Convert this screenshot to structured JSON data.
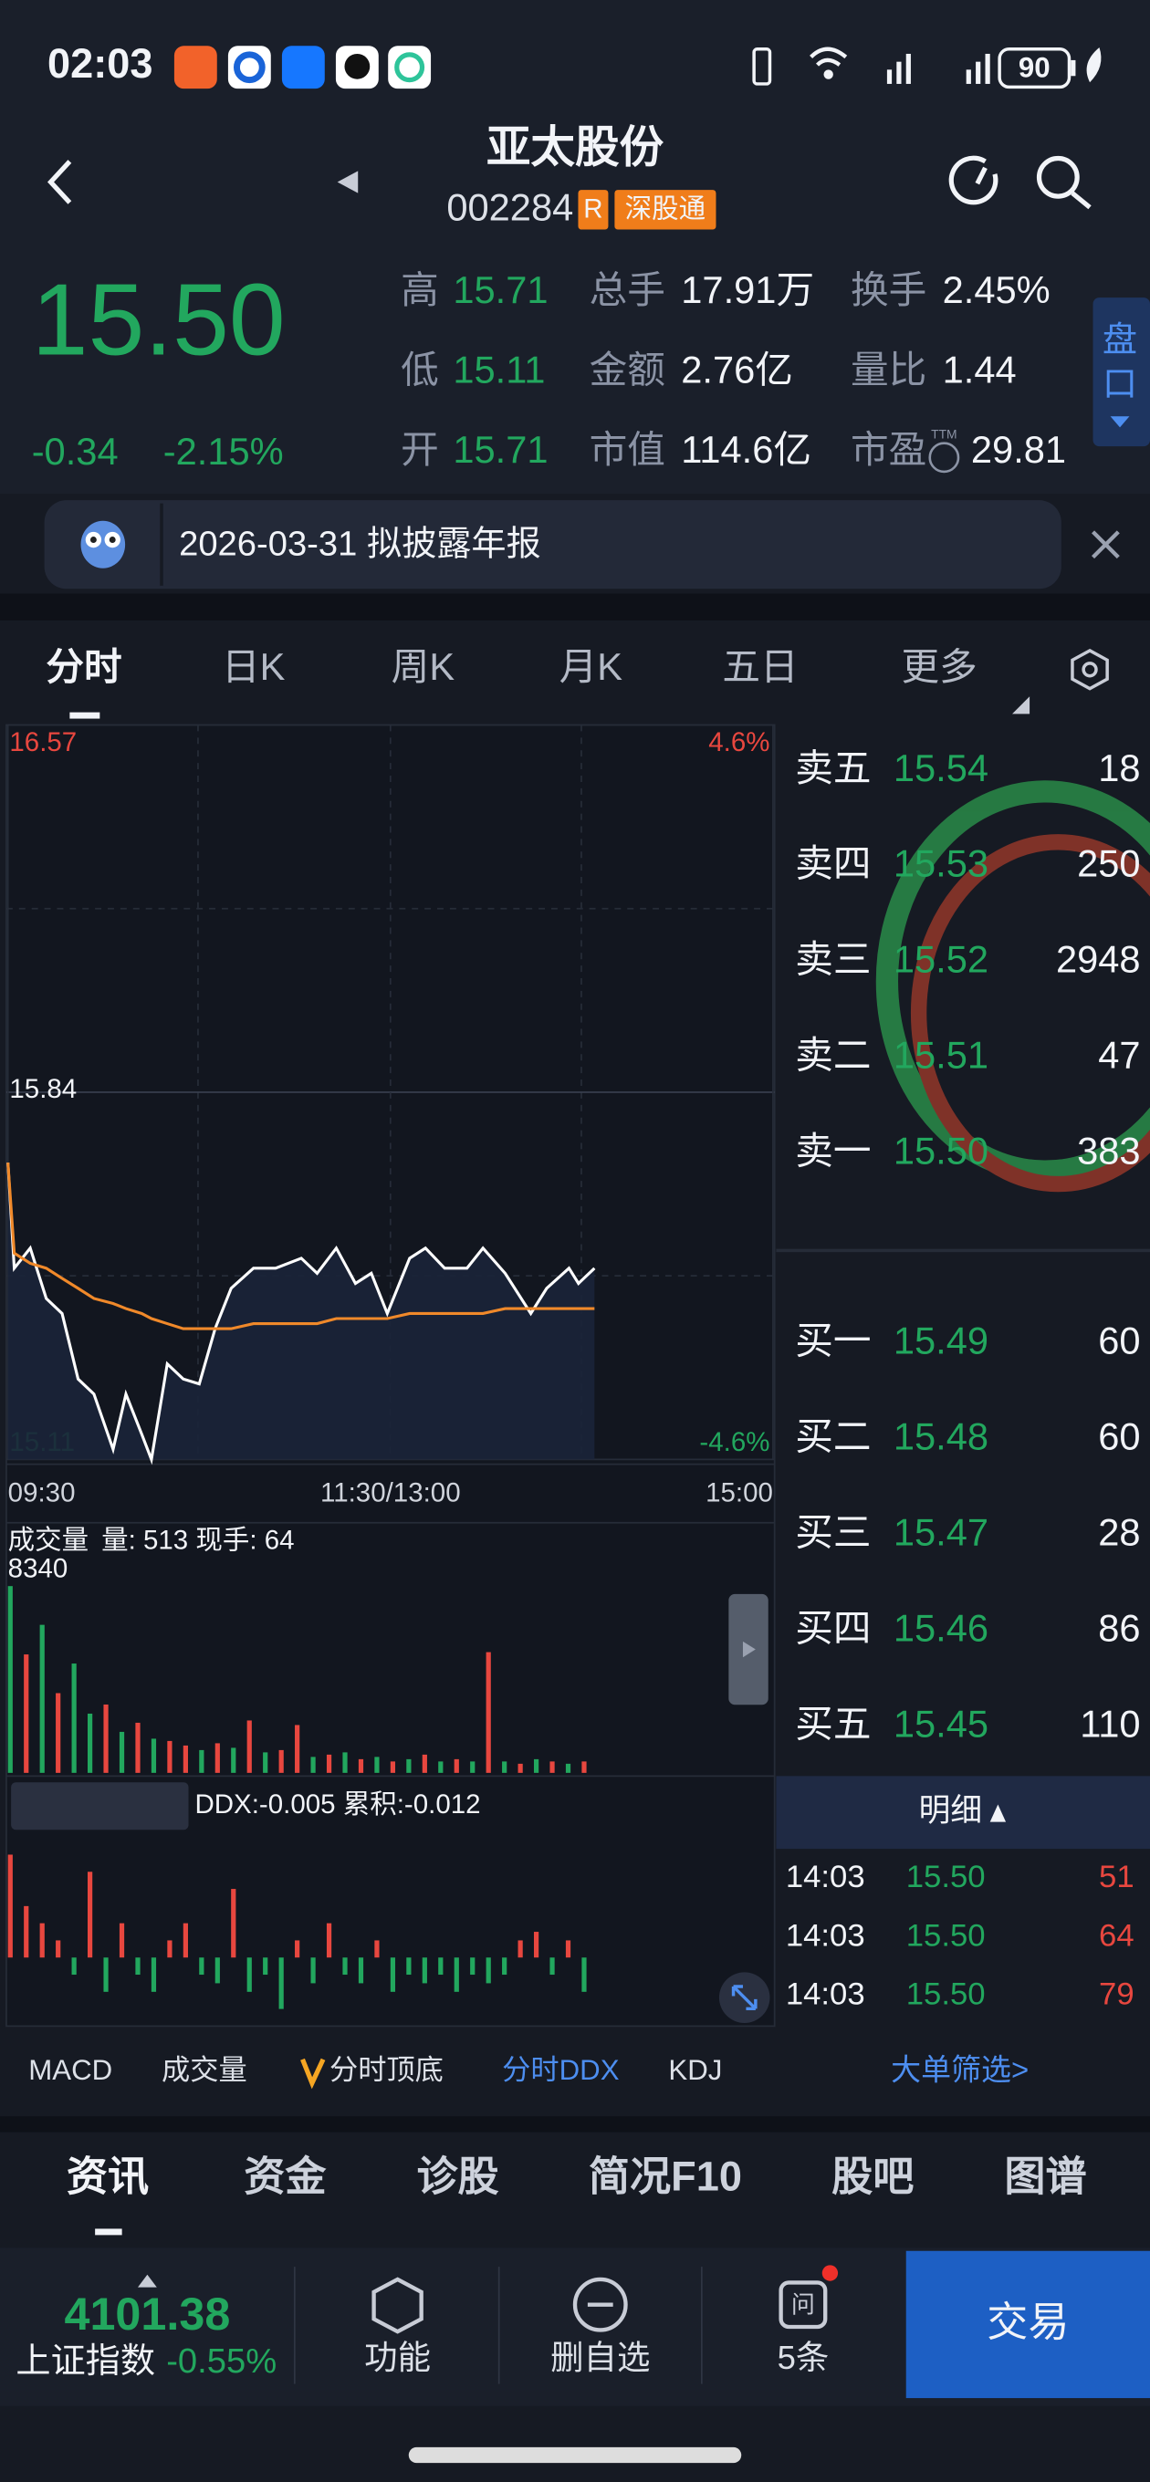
{
  "status_bar": {
    "time": "02:03",
    "battery": "90"
  },
  "header": {
    "name": "亚太股份",
    "code": "002284",
    "badge_r": "R",
    "badge_connect": "深股通"
  },
  "quote": {
    "price": "15.50",
    "change": "-0.34",
    "change_pct": "-2.15%",
    "stats": [
      {
        "label": "高",
        "value": "15.71"
      },
      {
        "label": "总手",
        "value": "17.91万"
      },
      {
        "label": "换手",
        "value": "2.45%"
      },
      {
        "label": "低",
        "value": "15.11"
      },
      {
        "label": "金额",
        "value": "2.76亿"
      },
      {
        "label": "量比",
        "value": "1.44"
      },
      {
        "label": "开",
        "value": "15.71"
      },
      {
        "label": "市值",
        "value": "114.6亿"
      },
      {
        "label": "市盈",
        "value": "29.81"
      }
    ],
    "ttm": "TTM"
  },
  "side_tab": [
    "盘",
    "口"
  ],
  "notice": "2026-03-31 拟披露年报",
  "tabs": [
    "分时",
    "日K",
    "周K",
    "月K",
    "五日",
    "更多"
  ],
  "chart_data": [
    {
      "type": "line",
      "x": [
        0,
        2,
        7,
        12,
        17,
        22,
        27,
        33,
        37,
        42,
        45,
        50,
        55,
        60,
        65,
        70,
        77,
        84,
        92,
        97,
        103,
        109,
        114,
        119,
        126,
        131,
        137,
        144,
        149,
        156,
        164,
        169,
        176,
        179,
        184
      ],
      "xlim": [
        0,
        240
      ],
      "xticks": [
        {
          "value": 0,
          "label": "09:30"
        },
        {
          "value": 120,
          "label": "11:30/13:00"
        },
        {
          "value": 240,
          "label": "15:00"
        }
      ],
      "ylim": [
        15.11,
        16.57
      ],
      "yticks": [
        16.57,
        15.84,
        15.11
      ],
      "y2lim": [
        -4.6,
        4.6
      ],
      "y2ticks": [
        {
          "value": 4.6,
          "label": "4.6%"
        },
        {
          "value": -4.6,
          "label": "-4.6%"
        }
      ],
      "grid": true,
      "series": [
        {
          "color": "#ffffff",
          "values": [
            15.7,
            15.49,
            15.53,
            15.43,
            15.4,
            15.27,
            15.24,
            15.13,
            15.24,
            15.16,
            15.11,
            15.3,
            15.27,
            15.26,
            15.37,
            15.45,
            15.49,
            15.49,
            15.51,
            15.48,
            15.53,
            15.46,
            15.48,
            15.4,
            15.51,
            15.53,
            15.49,
            15.49,
            15.53,
            15.48,
            15.4,
            15.45,
            15.49,
            15.46,
            15.49
          ]
        },
        {
          "color": "#f0892a",
          "values": [
            15.7,
            15.52,
            15.5,
            15.49,
            15.47,
            15.45,
            15.43,
            15.42,
            15.41,
            15.4,
            15.39,
            15.38,
            15.37,
            15.37,
            15.37,
            15.37,
            15.38,
            15.38,
            15.38,
            15.38,
            15.39,
            15.39,
            15.39,
            15.39,
            15.4,
            15.4,
            15.4,
            15.4,
            15.4,
            15.41,
            15.41,
            15.41,
            15.41,
            15.41,
            15.41
          ]
        }
      ]
    },
    {
      "type": "bar",
      "title": "成交量",
      "subtitle": "量: 513 现手: 64",
      "x": [
        0,
        5,
        10,
        15,
        20,
        25,
        30,
        35,
        40,
        45,
        50,
        55,
        60,
        65,
        70,
        75,
        80,
        85,
        90,
        95,
        100,
        105,
        110,
        115,
        120,
        125,
        130,
        135,
        140,
        145,
        150,
        155,
        160,
        165,
        170,
        175,
        180
      ],
      "xlim": [
        0,
        240
      ],
      "ylim": [
        0,
        8340
      ],
      "yticks": [
        8340
      ],
      "values": [
        8200,
        5200,
        6500,
        3500,
        4800,
        2600,
        3000,
        1800,
        2200,
        1500,
        1400,
        1200,
        1000,
        1300,
        1100,
        2300,
        900,
        1000,
        2100,
        700,
        800,
        900,
        600,
        700,
        500,
        600,
        800,
        500,
        600,
        500,
        5300,
        500,
        400,
        600,
        500,
        400,
        500
      ],
      "colors": [
        "#22a75e",
        "#e8473f",
        "#22a75e",
        "#e8473f",
        "#22a75e",
        "#22a75e",
        "#e8473f",
        "#22a75e",
        "#e8473f",
        "#22a75e",
        "#e8473f",
        "#e8473f",
        "#22a75e",
        "#e8473f",
        "#22a75e",
        "#e8473f",
        "#22a75e",
        "#e8473f",
        "#e8473f",
        "#22a75e",
        "#e8473f",
        "#22a75e",
        "#e8473f",
        "#22a75e",
        "#e8473f",
        "#22a75e",
        "#e8473f",
        "#22a75e",
        "#e8473f",
        "#22a75e",
        "#e8473f",
        "#22a75e",
        "#e8473f",
        "#22a75e",
        "#e8473f",
        "#22a75e",
        "#e8473f"
      ]
    },
    {
      "type": "bar",
      "title": "分时DDX",
      "subtitle": "DDX:-0.005 累积:-0.012",
      "x": [
        0,
        5,
        10,
        15,
        20,
        25,
        30,
        35,
        40,
        45,
        50,
        55,
        60,
        65,
        70,
        75,
        80,
        85,
        90,
        95,
        100,
        105,
        110,
        115,
        120,
        125,
        130,
        135,
        140,
        145,
        150,
        155,
        160,
        165,
        170,
        175,
        180
      ],
      "xlim": [
        0,
        240
      ],
      "ylim": [
        -0.04,
        0.08
      ],
      "up_color": "#e8473f",
      "down_color": "#22a75e",
      "values": [
        0.06,
        0.03,
        0.02,
        0.01,
        -0.01,
        0.05,
        -0.02,
        0.02,
        -0.01,
        -0.02,
        0.01,
        0.02,
        -0.01,
        -0.015,
        0.04,
        -0.02,
        -0.01,
        -0.03,
        0.01,
        -0.015,
        0.02,
        -0.01,
        -0.015,
        0.01,
        -0.02,
        -0.01,
        -0.015,
        -0.01,
        -0.02,
        -0.01,
        -0.015,
        -0.01,
        0.01,
        0.015,
        -0.01,
        0.01,
        -0.02
      ]
    }
  ],
  "order_book": {
    "asks": [
      {
        "label": "卖五",
        "price": "15.54",
        "volume": "18"
      },
      {
        "label": "卖四",
        "price": "15.53",
        "volume": "250"
      },
      {
        "label": "卖三",
        "price": "15.52",
        "volume": "2948"
      },
      {
        "label": "卖二",
        "price": "15.51",
        "volume": "47"
      },
      {
        "label": "卖一",
        "price": "15.50",
        "volume": "383"
      }
    ],
    "bids": [
      {
        "label": "买一",
        "price": "15.49",
        "volume": "60"
      },
      {
        "label": "买二",
        "price": "15.48",
        "volume": "60"
      },
      {
        "label": "买三",
        "price": "15.47",
        "volume": "28"
      },
      {
        "label": "买四",
        "price": "15.46",
        "volume": "86"
      },
      {
        "label": "买五",
        "price": "15.45",
        "volume": "110"
      }
    ]
  },
  "detail": {
    "title": "明细",
    "rows": [
      [
        "14:03",
        "15.50",
        "51"
      ],
      [
        "14:03",
        "15.50",
        "64"
      ],
      [
        "14:03",
        "15.50",
        "79"
      ]
    ],
    "filter": "大单筛选>"
  },
  "indicators": [
    "MACD",
    "成交量",
    "分时顶底",
    "分时DDX",
    "KDJ"
  ],
  "bottom_tabs": [
    "资讯",
    "资金",
    "诊股",
    "简况F10",
    "股吧",
    "图谱"
  ],
  "footer": {
    "index_value": "4101.38",
    "index_name": "上证指数",
    "index_change": "-0.55%",
    "buttons": [
      "功能",
      "删自选",
      "5条"
    ],
    "trade": "交易"
  }
}
